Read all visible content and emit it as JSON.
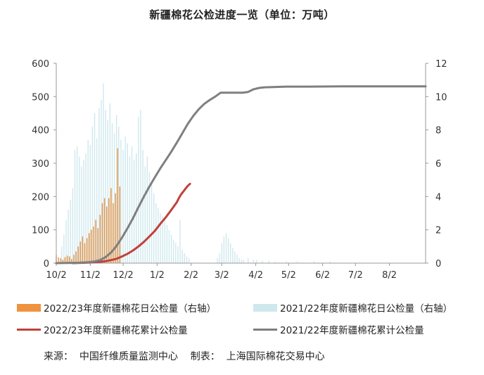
{
  "title": "新疆棉花公检进度一览（单位：万吨）",
  "source": "来源：  中国纤维质量监测中心    制表：  上海国际棉花交易中心",
  "chart_data": {
    "type": "bar+line",
    "x_tick_labels": [
      "10/2",
      "11/2",
      "12/2",
      "1/2",
      "2/2",
      "3/2",
      "4/2",
      "5/2",
      "6/2",
      "7/2",
      "8/2"
    ],
    "x_tick_days": [
      0,
      31,
      61,
      92,
      123,
      151,
      182,
      212,
      243,
      273,
      304
    ],
    "x_range_days": [
      0,
      337
    ],
    "y_left": {
      "min": 0,
      "max": 600,
      "ticks": [
        0,
        100,
        200,
        300,
        400,
        500,
        600
      ]
    },
    "y_right": {
      "min": 0,
      "max": 12,
      "ticks": [
        0,
        2,
        4,
        6,
        8,
        10,
        12
      ]
    },
    "colors": {
      "bars_2223": "#f0923e",
      "bars_2122": "#cfe8ee",
      "line_2223": "#c0413b",
      "line_2122": "#7f7f7f",
      "axis": "#999999"
    },
    "series": [
      {
        "name": "2022/23年度新疆棉花日公检量（右轴）",
        "kind": "bar",
        "axis": "right",
        "points": [
          [
            0,
            0.5
          ],
          [
            2,
            0.35
          ],
          [
            4,
            0.3
          ],
          [
            6,
            0.2
          ],
          [
            8,
            0.35
          ],
          [
            10,
            0.45
          ],
          [
            12,
            0.4
          ],
          [
            14,
            0.25
          ],
          [
            16,
            0.5
          ],
          [
            18,
            0.7
          ],
          [
            20,
            1.0
          ],
          [
            22,
            1.3
          ],
          [
            24,
            1.6
          ],
          [
            26,
            1.2
          ],
          [
            28,
            1.5
          ],
          [
            30,
            1.8
          ],
          [
            32,
            2.0
          ],
          [
            34,
            2.2
          ],
          [
            36,
            2.6
          ],
          [
            38,
            2.1
          ],
          [
            40,
            2.9
          ],
          [
            42,
            3.6
          ],
          [
            44,
            3.9
          ],
          [
            46,
            3.4
          ],
          [
            48,
            3.9
          ],
          [
            50,
            4.5
          ],
          [
            52,
            3.6
          ],
          [
            54,
            4.2
          ],
          [
            56,
            6.9
          ],
          [
            58,
            4.6
          ]
        ]
      },
      {
        "name": "2021/22年度新疆棉花日公检量（右轴）",
        "kind": "bar",
        "axis": "right",
        "points": [
          [
            5,
            1.0
          ],
          [
            7,
            1.7
          ],
          [
            9,
            2.6
          ],
          [
            11,
            3.2
          ],
          [
            13,
            3.8
          ],
          [
            15,
            4.5
          ],
          [
            17,
            6.8
          ],
          [
            19,
            7.0
          ],
          [
            21,
            6.4
          ],
          [
            23,
            5.8
          ],
          [
            25,
            6.2
          ],
          [
            27,
            6.6
          ],
          [
            29,
            7.4
          ],
          [
            31,
            7.1
          ],
          [
            33,
            8.2
          ],
          [
            35,
            9.0
          ],
          [
            37,
            7.5
          ],
          [
            39,
            9.3
          ],
          [
            41,
            9.8
          ],
          [
            43,
            10.8
          ],
          [
            45,
            9.2
          ],
          [
            47,
            8.6
          ],
          [
            49,
            9.6
          ],
          [
            51,
            8.4
          ],
          [
            53,
            7.8
          ],
          [
            55,
            8.9
          ],
          [
            57,
            8.2
          ],
          [
            59,
            7.4
          ],
          [
            61,
            6.8
          ],
          [
            63,
            7.6
          ],
          [
            65,
            7.2
          ],
          [
            67,
            6.4
          ],
          [
            69,
            7.0
          ],
          [
            71,
            6.2
          ],
          [
            73,
            6.6
          ],
          [
            75,
            8.8
          ],
          [
            77,
            9.2
          ],
          [
            79,
            6.8
          ],
          [
            81,
            5.8
          ],
          [
            83,
            6.4
          ],
          [
            85,
            5.5
          ],
          [
            87,
            4.8
          ],
          [
            89,
            4.2
          ],
          [
            91,
            3.6
          ],
          [
            93,
            3.3
          ],
          [
            95,
            3.0
          ],
          [
            97,
            2.8
          ],
          [
            99,
            2.6
          ],
          [
            101,
            2.3
          ],
          [
            103,
            2.0
          ],
          [
            105,
            1.7
          ],
          [
            107,
            1.4
          ],
          [
            109,
            1.2
          ],
          [
            111,
            1.0
          ],
          [
            113,
            2.6
          ],
          [
            115,
            0.8
          ],
          [
            117,
            0.6
          ],
          [
            119,
            0.4
          ],
          [
            121,
            0.3
          ],
          [
            147,
            0.3
          ],
          [
            149,
            0.6
          ],
          [
            151,
            1.2
          ],
          [
            153,
            1.6
          ],
          [
            155,
            1.8
          ],
          [
            157,
            1.5
          ],
          [
            159,
            1.2
          ],
          [
            161,
            0.9
          ],
          [
            163,
            0.7
          ],
          [
            165,
            0.5
          ],
          [
            167,
            0.3
          ],
          [
            169,
            0.2
          ],
          [
            171,
            0.2
          ],
          [
            175,
            0.3
          ],
          [
            180,
            0.2
          ],
          [
            183,
            0.2
          ],
          [
            188,
            0.15
          ],
          [
            194,
            0.15
          ],
          [
            200,
            0.1
          ],
          [
            210,
            0.1
          ],
          [
            220,
            0.1
          ],
          [
            235,
            0.1
          ],
          [
            250,
            0.1
          ]
        ]
      },
      {
        "name": "2022/23年度新疆棉花累计公检量",
        "kind": "line",
        "axis": "left",
        "points": [
          [
            15,
            0
          ],
          [
            20,
            0.5
          ],
          [
            25,
            1
          ],
          [
            30,
            2
          ],
          [
            35,
            3
          ],
          [
            40,
            4
          ],
          [
            45,
            6
          ],
          [
            50,
            9
          ],
          [
            55,
            13
          ],
          [
            60,
            20
          ],
          [
            65,
            28
          ],
          [
            70,
            38
          ],
          [
            75,
            50
          ],
          [
            80,
            64
          ],
          [
            85,
            80
          ],
          [
            90,
            97
          ],
          [
            95,
            118
          ],
          [
            100,
            138
          ],
          [
            105,
            160
          ],
          [
            110,
            183
          ],
          [
            112,
            196
          ],
          [
            114,
            207
          ],
          [
            116,
            215
          ],
          [
            118,
            224
          ],
          [
            120,
            232
          ],
          [
            122,
            238
          ]
        ]
      },
      {
        "name": "2021/22年度新疆棉花累计公检量",
        "kind": "line",
        "axis": "left",
        "points": [
          [
            0,
            0
          ],
          [
            20,
            1
          ],
          [
            30,
            3
          ],
          [
            35,
            5
          ],
          [
            40,
            9
          ],
          [
            45,
            18
          ],
          [
            50,
            32
          ],
          [
            55,
            52
          ],
          [
            60,
            77
          ],
          [
            65,
            105
          ],
          [
            70,
            135
          ],
          [
            75,
            168
          ],
          [
            80,
            200
          ],
          [
            85,
            230
          ],
          [
            90,
            258
          ],
          [
            95,
            285
          ],
          [
            100,
            310
          ],
          [
            105,
            335
          ],
          [
            110,
            362
          ],
          [
            115,
            390
          ],
          [
            120,
            418
          ],
          [
            125,
            442
          ],
          [
            130,
            462
          ],
          [
            135,
            478
          ],
          [
            140,
            490
          ],
          [
            145,
            500
          ],
          [
            150,
            512
          ],
          [
            160,
            512
          ],
          [
            170,
            512
          ],
          [
            175,
            514
          ],
          [
            180,
            522
          ],
          [
            185,
            526
          ],
          [
            190,
            528
          ],
          [
            200,
            529
          ],
          [
            210,
            530
          ],
          [
            230,
            530
          ],
          [
            260,
            531
          ],
          [
            337,
            531
          ]
        ]
      }
    ]
  },
  "legend": {
    "bars_2223": "2022/23年度新疆棉花日公检量（右轴）",
    "bars_2122": "2021/22年度新疆棉花日公检量（右轴）",
    "line_2223": "2022/23年度新疆棉花累计公检量",
    "line_2122": "2021/22年度新疆棉花累计公检量"
  }
}
